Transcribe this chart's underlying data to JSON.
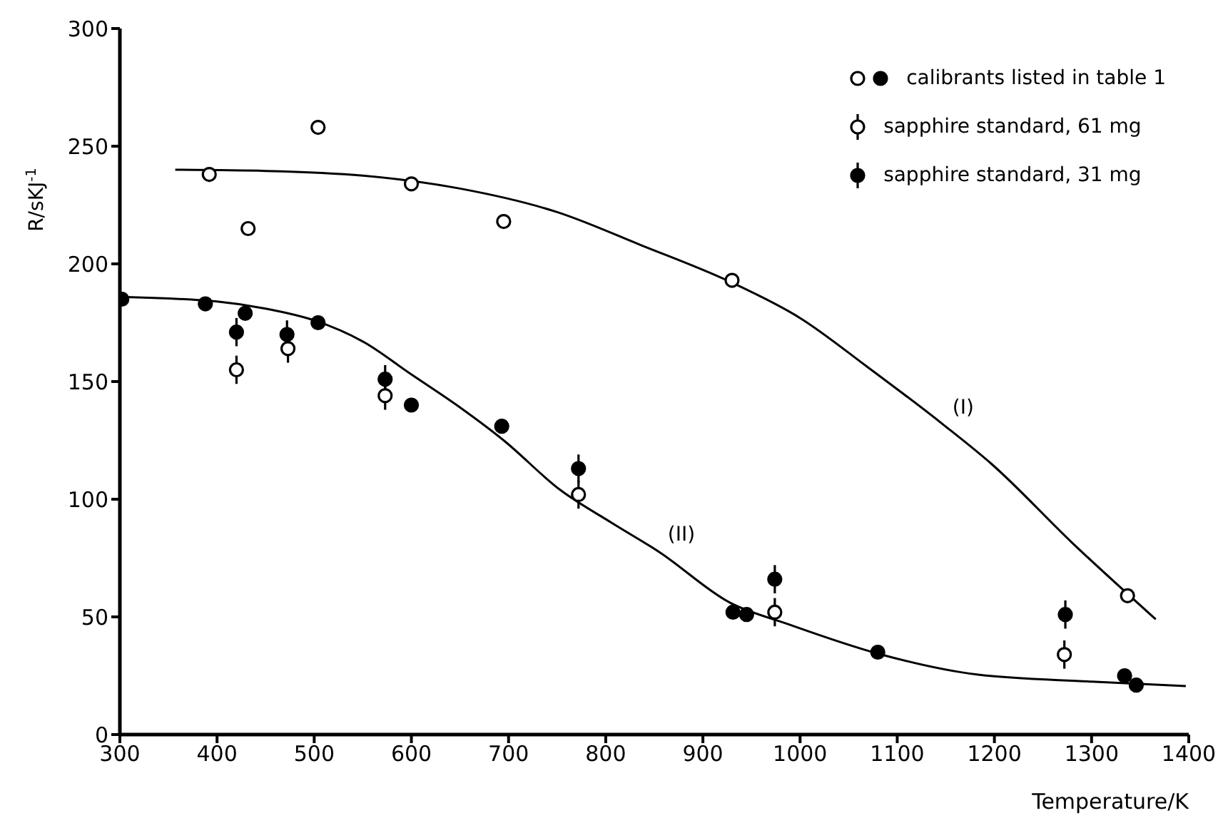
{
  "chart_data": {
    "type": "scatter",
    "xlabel": "Temperature/K",
    "ylabel": "R/sKJ$^{-1}$",
    "xlim": [
      300,
      1400
    ],
    "ylim": [
      0,
      300
    ],
    "xticks": [
      300,
      400,
      500,
      600,
      700,
      800,
      900,
      1000,
      1100,
      1200,
      1300,
      1400
    ],
    "yticks": [
      0,
      50,
      100,
      150,
      200,
      250,
      300
    ],
    "marker": "circle",
    "legend": "top right",
    "series": [
      {
        "color": "#ffffff",
        "x": [
          392,
          432,
          504,
          600,
          695,
          930,
          1337
        ],
        "values": [
          238,
          215,
          258,
          234,
          218,
          193,
          59
        ]
      },
      {
        "name": "calibrants listed in table 1",
        "color": "#000000",
        "x": [
          302,
          388,
          429,
          504,
          600,
          693,
          931,
          945,
          1080,
          1334,
          1346
        ],
        "values": [
          185,
          183,
          179,
          175,
          140,
          131,
          52,
          51,
          35,
          25,
          21
        ]
      },
      {
        "name": "sapphire standard, 61 mg",
        "color": "#ffffff",
        "x": [
          420,
          473,
          573,
          772,
          974,
          1272
        ],
        "values": [
          155,
          164,
          144,
          102,
          52,
          34
        ],
        "errors": [
          6,
          6,
          6,
          6,
          6,
          6
        ]
      },
      {
        "name": "sapphire standard, 31 mg",
        "color": "#000000",
        "x": [
          420,
          472,
          573,
          772,
          974,
          1273
        ],
        "values": [
          171,
          170,
          151,
          113,
          66,
          51
        ],
        "errors": [
          6,
          6,
          6,
          6,
          6,
          6
        ]
      },
      {
        "type": "line",
        "color": "#000000",
        "marker": "none",
        "line_style": "solid",
        "x": [
          357,
          450,
          550,
          650,
          750,
          836,
          930,
          1000,
          1070,
          1148,
          1197,
          1280,
          1366
        ],
        "values": [
          240,
          239.5,
          237.5,
          232,
          222,
          208,
          192,
          177,
          156,
          131.5,
          115,
          81.5,
          49
        ]
      },
      {
        "type": "line",
        "color": "#000000",
        "marker": "none",
        "line_style": "solid",
        "x": [
          300,
          400,
          450,
          500,
          550,
          600,
          650,
          695,
          753,
          806,
          855,
          928,
          987,
          1080,
          1182,
          1300,
          1397
        ],
        "values": [
          186,
          184,
          181,
          176,
          167,
          153,
          139,
          125,
          104,
          90,
          77.6,
          56,
          47,
          34.4,
          25.5,
          22.5,
          20.6
        ]
      }
    ],
    "annotations": [
      {
        "text": "(I)",
        "x": 1148,
        "y": 131.5
      },
      {
        "text": "(II)",
        "x": 855,
        "y": 77.6
      }
    ]
  }
}
